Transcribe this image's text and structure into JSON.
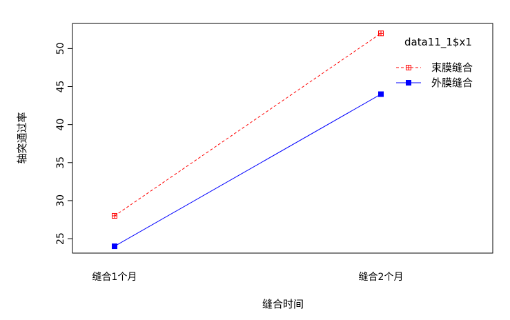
{
  "chart_data": {
    "type": "line",
    "title": "",
    "xlabel": "缝合时间",
    "ylabel": "轴突通过率",
    "categories": [
      "缝合1个月",
      "缝合2个月"
    ],
    "ylim": [
      23.1,
      53.3
    ],
    "yticks": [
      25,
      30,
      35,
      40,
      45,
      50
    ],
    "grid": false,
    "legend": {
      "title": "data11_1$x1",
      "placement": "top-right",
      "entries": [
        "束膜缝合",
        "外膜缝合"
      ]
    },
    "series": [
      {
        "name": "束膜缝合",
        "values": [
          28,
          52
        ],
        "color": "#ff0000",
        "linestyle": "dashed",
        "marker": "square-plus"
      },
      {
        "name": "外膜缝合",
        "values": [
          24,
          44
        ],
        "color": "#0000ff",
        "linestyle": "solid",
        "marker": "filled-square"
      }
    ]
  }
}
